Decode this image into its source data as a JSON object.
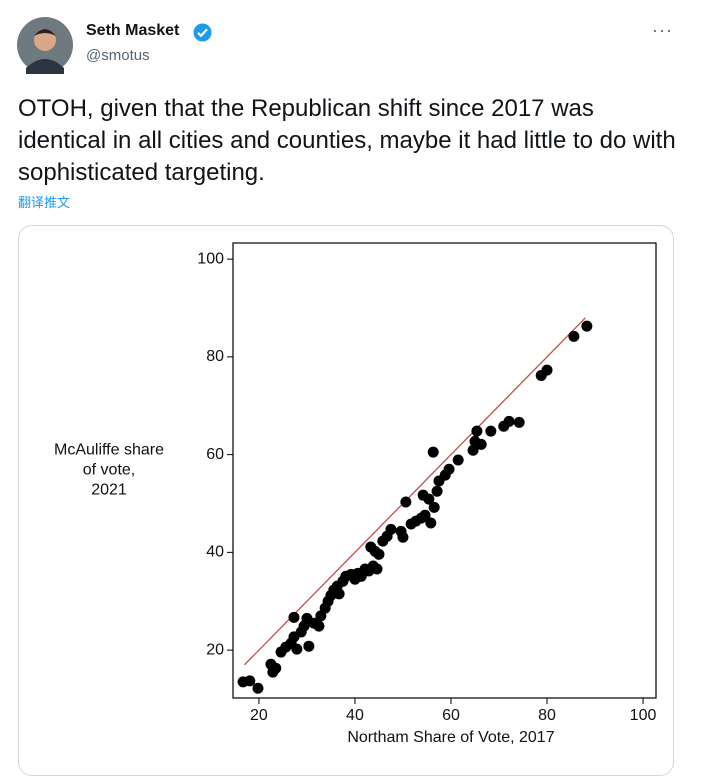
{
  "tweet": {
    "name": "Seth Masket",
    "handle": "@smotus",
    "more": "···",
    "text": "OTOH, given that the Republican shift since 2017 was identical in all cities and counties, maybe it had little to do with sophisticated targeting.",
    "translate": "翻译推文"
  },
  "chart_data": {
    "type": "scatter",
    "xlabel": "Northam Share of Vote, 2017",
    "ylabel": [
      "McAuliffe share",
      "of vote,",
      "2021"
    ],
    "xlim": [
      14.6,
      102.7
    ],
    "ylim": [
      10.2,
      103.3
    ],
    "xticks": [
      20,
      40,
      60,
      80,
      100
    ],
    "yticks": [
      20,
      40,
      60,
      80,
      100
    ],
    "color": "#000000",
    "x": [
      16.7,
      18.1,
      19.8,
      22.5,
      22.9,
      23.5,
      24.6,
      25.6,
      26.7,
      27.3,
      27.9,
      27.3,
      28.8,
      29.4,
      30.4,
      30.0,
      31.5,
      32.5,
      32.9,
      33.8,
      34.4,
      35.0,
      35.6,
      36.3,
      36.7,
      37.5,
      38.1,
      39.2,
      40.0,
      40.6,
      41.3,
      42.1,
      42.9,
      43.8,
      44.6,
      43.3,
      44.2,
      45.0,
      45.8,
      46.7,
      47.5,
      49.6,
      50.0,
      50.6,
      51.7,
      52.7,
      53.8,
      54.6,
      54.2,
      55.4,
      55.8,
      56.5,
      57.1,
      57.5,
      56.3,
      58.8,
      59.6,
      61.5,
      64.6,
      65.0,
      65.4,
      66.3,
      68.3,
      71.0,
      72.1,
      74.2,
      78.8,
      80.0,
      85.6,
      88.3
    ],
    "values": [
      13.5,
      13.7,
      12.2,
      17.1,
      15.5,
      16.3,
      19.6,
      20.6,
      21.4,
      22.7,
      20.2,
      26.7,
      23.7,
      24.9,
      20.8,
      26.5,
      25.5,
      24.9,
      27.0,
      28.6,
      30.0,
      31.2,
      32.3,
      33.1,
      31.5,
      34.1,
      35.1,
      35.5,
      34.5,
      35.7,
      35.1,
      36.6,
      36.2,
      37.2,
      36.6,
      41.1,
      40.2,
      39.6,
      42.3,
      43.3,
      44.7,
      44.3,
      43.1,
      50.3,
      45.8,
      46.4,
      47.0,
      47.6,
      51.7,
      50.9,
      46.0,
      49.2,
      52.5,
      54.6,
      60.5,
      55.8,
      57.0,
      58.9,
      60.9,
      62.7,
      64.8,
      62.1,
      64.8,
      65.8,
      66.8,
      66.6,
      76.2,
      77.3,
      84.2,
      86.3
    ],
    "reference_line": {
      "x": [
        17,
        88
      ],
      "values": [
        17,
        88
      ],
      "color": "#c0504d"
    }
  }
}
